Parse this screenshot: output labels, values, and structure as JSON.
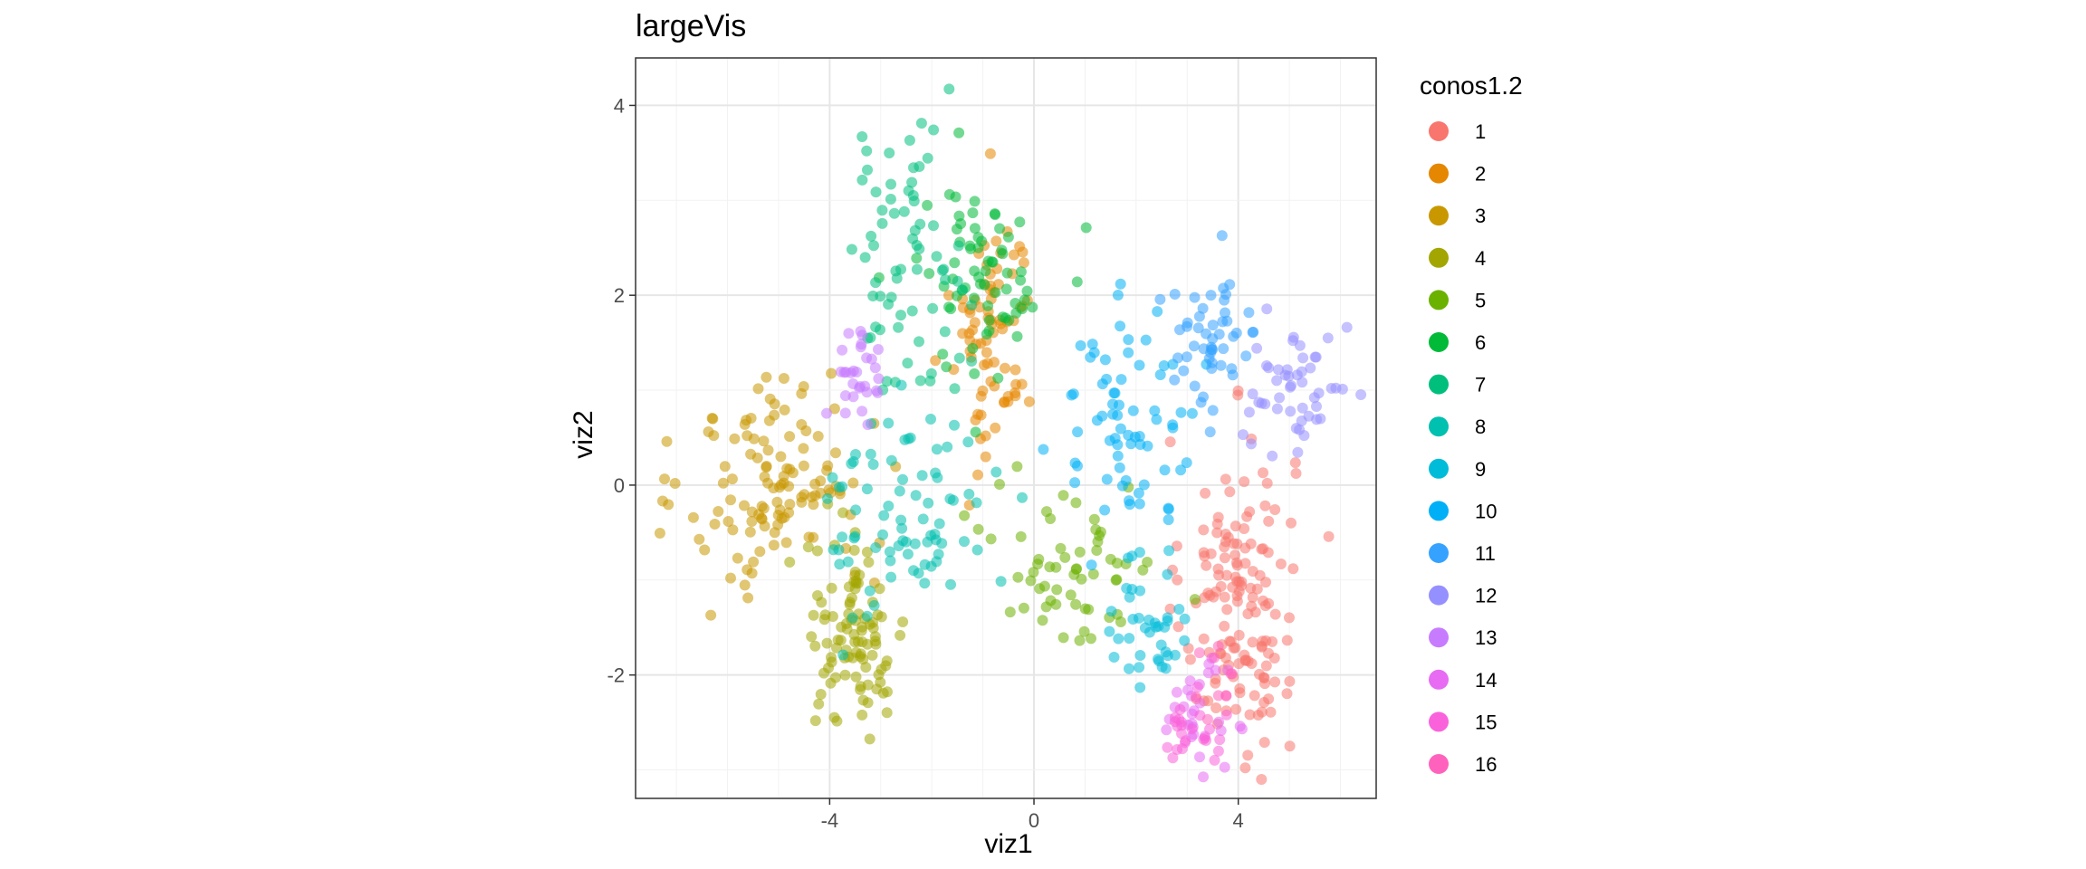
{
  "chart_data": {
    "type": "scatter",
    "title": "largeVis",
    "xlabel": "viz1",
    "ylabel": "viz2",
    "xlim": [
      -7.8,
      6.7
    ],
    "ylim": [
      -3.3,
      4.5
    ],
    "x_ticks": [
      -4,
      0,
      4
    ],
    "x_tick_labels": [
      "-4",
      "0",
      "4"
    ],
    "y_ticks": [
      -2,
      0,
      2,
      4
    ],
    "y_tick_labels": [
      "-2",
      "0",
      "2",
      "4"
    ],
    "grid": true,
    "legend": {
      "title": "conos1.2",
      "position": "right",
      "entries": [
        "1",
        "2",
        "3",
        "4",
        "5",
        "6",
        "7",
        "8",
        "9",
        "10",
        "11",
        "12",
        "13",
        "14",
        "15",
        "16"
      ]
    },
    "series": [
      {
        "name": "1",
        "color": "#F8766D",
        "cx": 4.0,
        "cy": -1.2,
        "sx": 0.55,
        "sy": 0.85,
        "n": 150
      },
      {
        "name": "2",
        "color": "#E58700",
        "cx": -0.8,
        "cy": 1.6,
        "sx": 0.4,
        "sy": 0.7,
        "n": 80
      },
      {
        "name": "3",
        "color": "#C99800",
        "cx": -5.0,
        "cy": 0.0,
        "sx": 0.9,
        "sy": 0.6,
        "n": 120
      },
      {
        "name": "4",
        "color": "#A3A500",
        "cx": -3.5,
        "cy": -1.6,
        "sx": 0.5,
        "sy": 0.5,
        "n": 100
      },
      {
        "name": "5",
        "color": "#6BB100",
        "cx": 0.8,
        "cy": -0.8,
        "sx": 0.8,
        "sy": 0.45,
        "n": 60
      },
      {
        "name": "6",
        "color": "#00BA38",
        "cx": -1.0,
        "cy": 2.2,
        "sx": 0.7,
        "sy": 0.5,
        "n": 70
      },
      {
        "name": "7",
        "color": "#00BF7D",
        "cx": -2.5,
        "cy": 2.4,
        "sx": 0.6,
        "sy": 0.7,
        "n": 70
      },
      {
        "name": "8",
        "color": "#00C0AF",
        "cx": -2.5,
        "cy": -0.3,
        "sx": 0.8,
        "sy": 0.6,
        "n": 80
      },
      {
        "name": "9",
        "color": "#00BCD8",
        "cx": 2.3,
        "cy": -1.4,
        "sx": 0.4,
        "sy": 0.4,
        "n": 40
      },
      {
        "name": "10",
        "color": "#00B0F6",
        "cx": 1.8,
        "cy": 0.7,
        "sx": 0.7,
        "sy": 0.55,
        "n": 70
      },
      {
        "name": "11",
        "color": "#35A2FF",
        "cx": 3.5,
        "cy": 1.5,
        "sx": 0.5,
        "sy": 0.4,
        "n": 50
      },
      {
        "name": "12",
        "color": "#9590FF",
        "cx": 5.2,
        "cy": 1.0,
        "sx": 0.5,
        "sy": 0.35,
        "n": 50
      },
      {
        "name": "13",
        "color": "#C77CFF",
        "cx": -3.5,
        "cy": 1.1,
        "sx": 0.3,
        "sy": 0.3,
        "n": 30
      },
      {
        "name": "14",
        "color": "#E76BF3",
        "cx": 3.2,
        "cy": -2.4,
        "sx": 0.3,
        "sy": 0.25,
        "n": 30
      },
      {
        "name": "15",
        "color": "#FA62DB",
        "cx": 3.0,
        "cy": -2.6,
        "sx": 0.3,
        "sy": 0.2,
        "n": 25
      },
      {
        "name": "16",
        "color": "#FF62BC",
        "cx": 3.6,
        "cy": -2.1,
        "sx": 0.3,
        "sy": 0.3,
        "n": 10
      }
    ]
  }
}
